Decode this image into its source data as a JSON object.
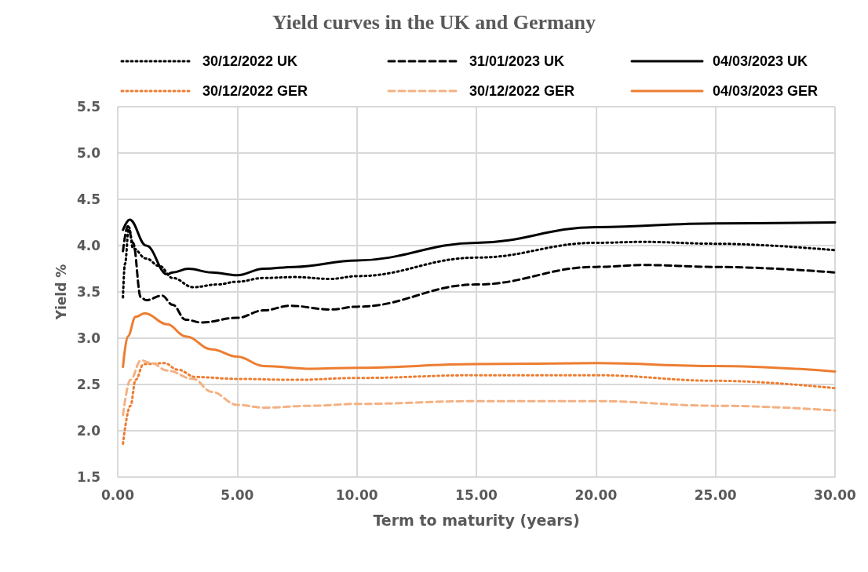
{
  "chart_data": {
    "type": "line",
    "title": "Yield curves in the UK and Germany",
    "xlabel": "Term to maturity (years)",
    "ylabel": "Yield %",
    "xlim": [
      0,
      30
    ],
    "xticks": [
      {
        "value": 0,
        "label": "0.00"
      },
      {
        "value": 5,
        "label": "5.00"
      },
      {
        "value": 10,
        "label": "10.00"
      },
      {
        "value": 15,
        "label": "15.00"
      },
      {
        "value": 20,
        "label": "20.00"
      },
      {
        "value": 25,
        "label": "25.00"
      },
      {
        "value": 30,
        "label": "30.00"
      }
    ],
    "ylim": [
      1.5,
      5.5
    ],
    "yticks": [
      {
        "value": 1.5,
        "label": "1.5"
      },
      {
        "value": 2,
        "label": "2.0"
      },
      {
        "value": 2.5,
        "label": "2.5"
      },
      {
        "value": 3,
        "label": "3.0"
      },
      {
        "value": 3.5,
        "label": "3.5"
      },
      {
        "value": 4,
        "label": "4.0"
      },
      {
        "value": 4.5,
        "label": "4.5"
      },
      {
        "value": 5,
        "label": "5.0"
      },
      {
        "value": 5.5,
        "label": "5.5"
      }
    ],
    "grid": true,
    "legend": "top",
    "marker": "none",
    "series": [
      {
        "name": "30/12/2022 UK",
        "color": "#000000",
        "line_style": "dotted",
        "x": [
          0.22,
          0.3,
          0.47,
          0.64,
          1.19,
          1.74,
          2.3,
          3.16,
          4.15,
          5,
          6.1,
          7.4,
          8.9,
          10,
          15,
          20,
          22,
          25,
          30
        ],
        "values": [
          3.44,
          3.8,
          4.2,
          3.97,
          3.86,
          3.78,
          3.65,
          3.55,
          3.58,
          3.61,
          3.65,
          3.66,
          3.64,
          3.67,
          3.87,
          4.03,
          4.04,
          4.02,
          3.95
        ]
      },
      {
        "name": "31/01/2023 UK",
        "color": "#000000",
        "line_style": "dashed",
        "x": [
          0.22,
          0.42,
          0.64,
          0.97,
          1.19,
          1.85,
          2.3,
          2.84,
          3.5,
          5,
          6.1,
          7.2,
          8.9,
          10,
          15,
          20,
          22,
          25,
          30
        ],
        "values": [
          3.94,
          4.21,
          4.03,
          3.44,
          3.41,
          3.46,
          3.36,
          3.2,
          3.17,
          3.22,
          3.3,
          3.35,
          3.31,
          3.34,
          3.58,
          3.77,
          3.79,
          3.77,
          3.71
        ]
      },
      {
        "name": "04/03/2023 UK",
        "color": "#000000",
        "line_style": "solid",
        "x": [
          0.22,
          0.5,
          1.19,
          2.07,
          2.3,
          2.95,
          3.93,
          5,
          6.1,
          7.4,
          10,
          15,
          20,
          25,
          30
        ],
        "values": [
          4.17,
          4.28,
          4.0,
          3.69,
          3.71,
          3.75,
          3.71,
          3.68,
          3.75,
          3.77,
          3.84,
          4.03,
          4.2,
          4.24,
          4.25
        ]
      },
      {
        "name": "30/12/2022 GER",
        "color": "#ed7d31",
        "line_style": "dotted",
        "x": [
          0.22,
          0.53,
          0.75,
          1.08,
          1.96,
          2.5,
          3.27,
          5,
          7.4,
          10,
          15,
          20,
          25,
          30
        ],
        "values": [
          1.86,
          2.27,
          2.55,
          2.72,
          2.73,
          2.66,
          2.58,
          2.56,
          2.55,
          2.57,
          2.6,
          2.6,
          2.54,
          2.46
        ]
      },
      {
        "name": "30/12/2022 GER",
        "color": "#f4b183",
        "line_style": "dashed",
        "x": [
          0.22,
          0.53,
          0.97,
          1.41,
          2.07,
          3.16,
          3.93,
          5,
          6.1,
          8.1,
          10,
          15,
          20,
          25,
          30
        ],
        "values": [
          2.17,
          2.55,
          2.76,
          2.73,
          2.65,
          2.56,
          2.42,
          2.28,
          2.25,
          2.27,
          2.29,
          2.32,
          2.32,
          2.27,
          2.22
        ]
      },
      {
        "name": "04/03/2023 GER",
        "color": "#ed7d31",
        "line_style": "solid",
        "x": [
          0.22,
          0.42,
          0.75,
          1.13,
          2.07,
          2.84,
          3.93,
          5,
          6.1,
          8.1,
          10,
          15,
          20,
          25,
          30
        ],
        "values": [
          2.69,
          3.02,
          3.23,
          3.27,
          3.15,
          3.02,
          2.88,
          2.8,
          2.7,
          2.67,
          2.68,
          2.72,
          2.73,
          2.7,
          2.64
        ]
      }
    ]
  }
}
